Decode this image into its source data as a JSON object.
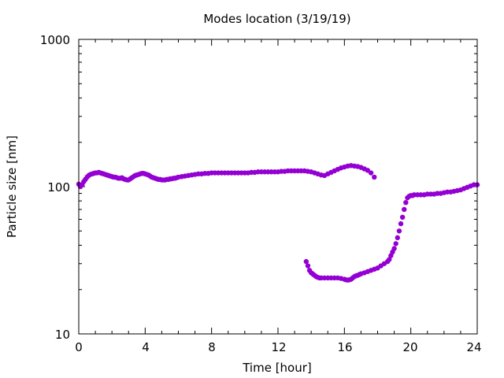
{
  "chart_data": {
    "type": "scatter",
    "title": "Modes location (3/19/19)",
    "xlabel": "Time [hour]",
    "ylabel": "Particle size [nm]",
    "xlim": [
      0,
      24
    ],
    "ylim": [
      10,
      1000
    ],
    "yscale": "log",
    "grid": false,
    "legend": "none",
    "marker_color": "#9400d3",
    "x_ticks": [
      "0",
      "4",
      "8",
      "12",
      "16",
      "20",
      "24"
    ],
    "y_ticks": [
      "10",
      "100",
      "1000"
    ],
    "series": [
      {
        "x": [
          0.0,
          0.1,
          0.2,
          0.3,
          0.4,
          0.5,
          0.6,
          0.7,
          0.8,
          0.9,
          1.0,
          1.1,
          1.2,
          1.3,
          1.4,
          1.5,
          1.6,
          1.7,
          1.8,
          1.9,
          2.0,
          2.1,
          2.2,
          2.3,
          2.4,
          2.5,
          2.6,
          2.7,
          2.8,
          2.9,
          3.0,
          3.1,
          3.2,
          3.3,
          3.4,
          3.5,
          3.6,
          3.7,
          3.8,
          3.9,
          4.0,
          4.1,
          4.2,
          4.3,
          4.4,
          4.5,
          4.6,
          4.7,
          4.8,
          4.9,
          5.0,
          5.1,
          5.2,
          5.3,
          5.4,
          5.5,
          5.6,
          5.7,
          5.8,
          5.9,
          6.0,
          6.2,
          6.4,
          6.6,
          6.8,
          7.0,
          7.2,
          7.4,
          7.6,
          7.8,
          8.0,
          8.2,
          8.4,
          8.6,
          8.8,
          9.0,
          9.2,
          9.4,
          9.6,
          9.8,
          10.0,
          10.2,
          10.4,
          10.6,
          10.8,
          11.0,
          11.2,
          11.4,
          11.6,
          11.8,
          12.0,
          12.2,
          12.4,
          12.6,
          12.8,
          13.0,
          13.2,
          13.4,
          13.6,
          13.8,
          14.0,
          14.2,
          14.4,
          14.6,
          14.8,
          15.0,
          15.2,
          15.4,
          15.6,
          15.8,
          16.0,
          16.2,
          16.4,
          16.6,
          16.8,
          17.0,
          17.2,
          17.4,
          17.6,
          17.8
        ],
        "y": [
          104,
          100,
          103,
          108,
          112,
          116,
          119,
          121,
          122,
          123,
          124,
          124,
          125,
          124,
          123,
          122,
          121,
          120,
          119,
          118,
          117,
          116,
          116,
          115,
          114,
          114,
          115,
          113,
          112,
          111,
          111,
          113,
          115,
          117,
          119,
          120,
          121,
          122,
          123,
          123,
          122,
          121,
          120,
          118,
          116,
          115,
          114,
          113,
          112,
          112,
          111,
          111,
          111,
          112,
          112,
          113,
          113,
          114,
          114,
          115,
          116,
          117,
          118,
          119,
          120,
          121,
          122,
          122,
          123,
          123,
          124,
          124,
          124,
          124,
          124,
          124,
          124,
          124,
          124,
          124,
          124,
          124,
          125,
          125,
          126,
          126,
          126,
          126,
          126,
          126,
          126,
          127,
          127,
          128,
          128,
          128,
          128,
          128,
          128,
          127,
          126,
          124,
          122,
          120,
          119,
          122,
          125,
          128,
          131,
          134,
          136,
          138,
          139,
          138,
          137,
          135,
          132,
          129,
          124,
          116
        ]
      },
      {
        "x": [
          13.7,
          13.8,
          13.9,
          14.0,
          14.1,
          14.2,
          14.3,
          14.4,
          14.5,
          14.6,
          14.8,
          15.0,
          15.2,
          15.4,
          15.6,
          15.8,
          16.0,
          16.1,
          16.2,
          16.3,
          16.4,
          16.5,
          16.6,
          16.7,
          16.8,
          16.9,
          17.0,
          17.2,
          17.4,
          17.6,
          17.8,
          18.0,
          18.2,
          18.4,
          18.6,
          18.7,
          18.8,
          18.9,
          19.0,
          19.1,
          19.2,
          19.3,
          19.4,
          19.5,
          19.6,
          19.7,
          19.8,
          19.9,
          20.0,
          20.1,
          20.2,
          20.4,
          20.6,
          20.8,
          21.0,
          21.2,
          21.4,
          21.6,
          21.8,
          22.0,
          22.2,
          22.4,
          22.6,
          22.8,
          23.0,
          23.2,
          23.4,
          23.6,
          23.8,
          24.0
        ],
        "y": [
          31,
          29,
          27,
          26,
          25.5,
          25,
          24.5,
          24.2,
          24,
          24,
          24,
          24,
          24,
          24,
          24,
          23.8,
          23.5,
          23.3,
          23.2,
          23.3,
          23.5,
          24,
          24.5,
          24.8,
          25,
          25.3,
          25.6,
          26,
          26.5,
          27,
          27.5,
          28,
          29,
          30,
          31,
          32,
          34,
          36,
          38,
          41,
          45,
          50,
          56,
          62,
          70,
          78,
          84,
          86,
          87,
          87,
          88,
          88,
          88,
          88,
          89,
          89,
          89,
          90,
          90,
          91,
          92,
          92,
          93,
          94,
          95,
          97,
          99,
          101,
          103,
          103
        ]
      }
    ]
  }
}
